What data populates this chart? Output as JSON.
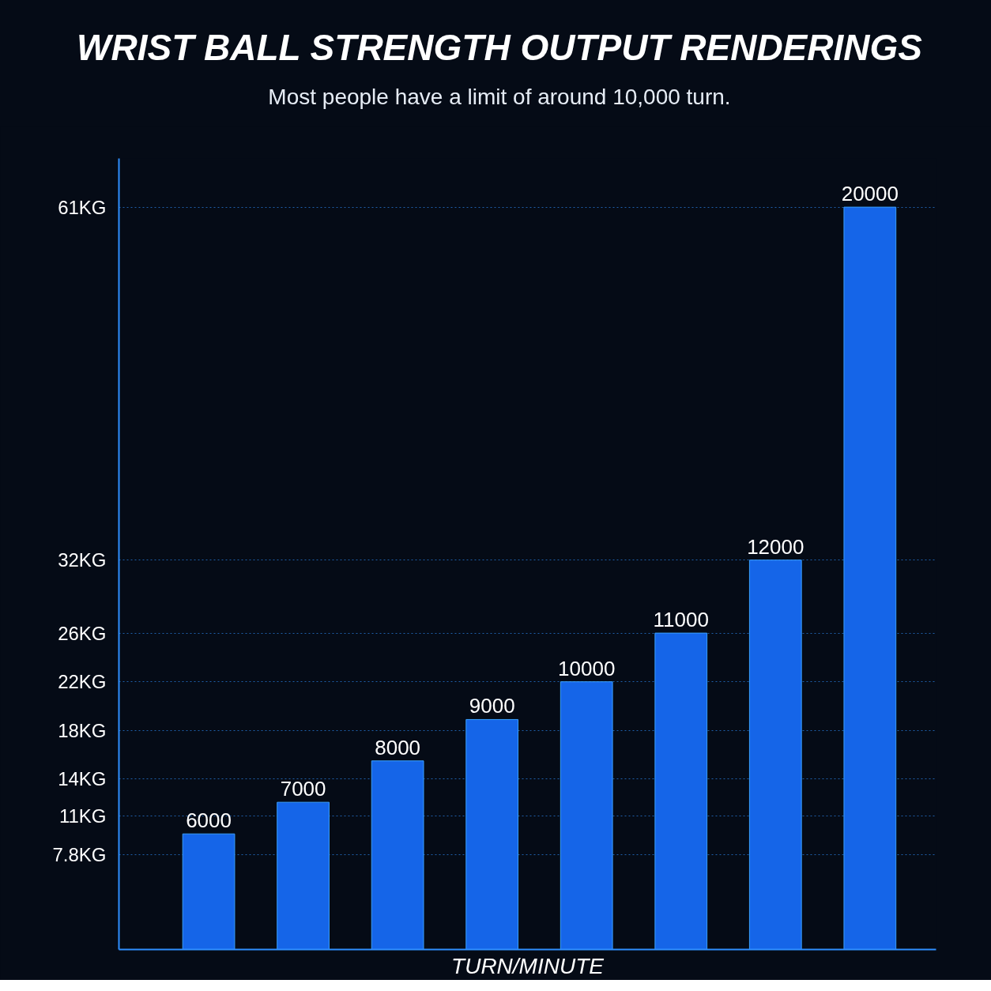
{
  "chart_data": {
    "type": "bar",
    "title": "WRIST BALL STRENGTH OUTPUT RENDERINGS",
    "subtitle": "Most people have a limit of around 10,000 turn.",
    "xlabel": "TURN/MINUTE",
    "categories": [
      null,
      null,
      null,
      null,
      null,
      null,
      null,
      null
    ],
    "values": [
      9.5,
      12.1,
      15.5,
      18.9,
      22,
      26,
      32,
      61
    ],
    "color": "#1565e8",
    "ylim": [
      0,
      65
    ],
    "yticks": [
      {
        "value": 7.8,
        "label": "7.8KG"
      },
      {
        "value": 11,
        "label": "11KG"
      },
      {
        "value": 14,
        "label": "14KG"
      },
      {
        "value": 18,
        "label": "18KG"
      },
      {
        "value": 22,
        "label": "22KG"
      },
      {
        "value": 26,
        "label": "26KG"
      },
      {
        "value": 32,
        "label": "32KG"
      },
      {
        "value": 61,
        "label": "61KG"
      }
    ],
    "annotations": [
      {
        "text": "6000",
        "y": 9.5
      },
      {
        "text": "7000",
        "y": 12.1
      },
      {
        "text": "8000",
        "y": 15.5
      },
      {
        "text": "9000",
        "y": 18.9
      },
      {
        "text": "10000",
        "y": 22
      },
      {
        "text": "11000",
        "y": 26
      },
      {
        "text": "12000",
        "y": 32
      },
      {
        "text": "20000",
        "y": 61
      }
    ],
    "grid": "y",
    "tick_labels": "y"
  }
}
